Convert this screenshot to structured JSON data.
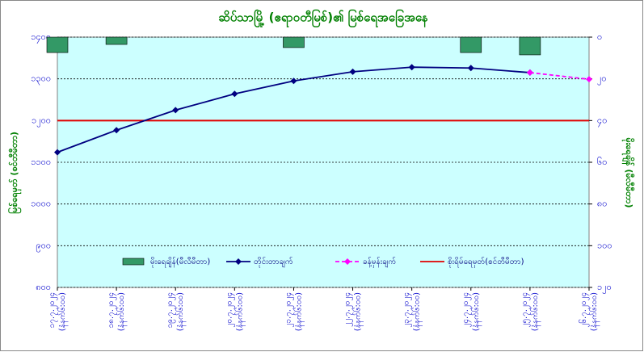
{
  "chart_data": {
    "type": "combo",
    "title": "ဆိပ်သာမြို့ (ဧရာဝတီမြစ်)၏ မြစ်ရေအခြေအနေ",
    "y_label": "မြစ်ရေမှတ် (စင်တီမီတာ)",
    "y2_label": "မိုးရေချိန် (မီလီမီတာ)",
    "categories": [
      [
        "၁၇.၇.၂၀၂၄",
        "(နံနက်၆:၀၀)"
      ],
      [
        "၁၈.၇.၂၀၂၄",
        "(နံနက်၆:၀၀)"
      ],
      [
        "၁၉.၇.၂၀၂၄",
        "(နံနက်၆:၀၀)"
      ],
      [
        "၂၀.၇.၂၀၂၄",
        "(နံနက်၆:၀၀)"
      ],
      [
        "၂၁.၇.၂၀၂၄",
        "(နံနက်၆:၀၀)"
      ],
      [
        "၂၂.၇.၂၀၂၄",
        "(နံနက်၆:၀၀)"
      ],
      [
        "၂၃.၇.၂၀၂၄",
        "(နံနက်၆:၀၀)"
      ],
      [
        "၂၄.၇.၂၀၂၄",
        "(နံနက်၆:၀၀)"
      ],
      [
        "၂၅.၇.၂၀၂၄",
        "(နံနက်၆:၀၀)"
      ],
      [
        "၂၆.၇.၂၀၂၄",
        "(နံနက်၆:၀၀)"
      ]
    ],
    "series": [
      {
        "name": "မိုးရေချိန်(မီလီမီတာ)",
        "type": "bar",
        "axis": "y2",
        "color": "#339966",
        "values": [
          7.4,
          3.5,
          0,
          0,
          5,
          0,
          0,
          7.4,
          8.5,
          0
        ]
      },
      {
        "name": "တိုင်းတာချက်",
        "type": "line",
        "color": "#000080",
        "values": [
          1124,
          1177,
          1225,
          1264,
          1295,
          1317,
          1328,
          1326,
          1315,
          null
        ]
      },
      {
        "name": "ခန့်မှန်းချက်",
        "type": "line",
        "dashed": true,
        "color": "#ff00ff",
        "values": [
          null,
          null,
          null,
          null,
          null,
          null,
          null,
          null,
          1315,
          1299
        ]
      }
    ],
    "threshold": {
      "name": "စိုးရိမ်ရေမှတ်(စင်တီမီတာ)",
      "value": 1200,
      "color": "#e00000"
    },
    "ylim": [
      800,
      1400
    ],
    "yticks": [
      {
        "value": 800,
        "label": "၈၀၀"
      },
      {
        "value": 900,
        "label": "၉၀၀"
      },
      {
        "value": 1000,
        "label": "၁၀၀၀"
      },
      {
        "value": 1100,
        "label": "၁၁၀၀"
      },
      {
        "value": 1200,
        "label": "၁၂၀၀"
      },
      {
        "value": 1300,
        "label": "၁၃၀၀"
      },
      {
        "value": 1400,
        "label": "၁၄၀၀"
      }
    ],
    "y2lim": [
      120,
      0
    ],
    "y2ticks": [
      {
        "value": 0,
        "label": "၀"
      },
      {
        "value": 20,
        "label": "၂၀"
      },
      {
        "value": 40,
        "label": "၄၀"
      },
      {
        "value": 60,
        "label": "၆၀"
      },
      {
        "value": 80,
        "label": "၈၀"
      },
      {
        "value": 100,
        "label": "၁၀၀"
      },
      {
        "value": 120,
        "label": "၁၂၀"
      }
    ],
    "grid": true,
    "legend": "bottom",
    "background": "#ccffff"
  }
}
